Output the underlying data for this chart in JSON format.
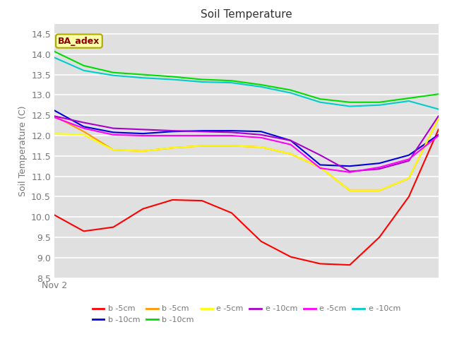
{
  "title": "Soil Temperature",
  "ylabel": "Soil Temperature (C)",
  "xlabel": "Nov 2",
  "ylim": [
    8.5,
    14.75
  ],
  "annotation_text": "BA_adex",
  "series": [
    {
      "label": "b -5cm",
      "color": "#ff0000",
      "y": [
        10.05,
        9.65,
        9.75,
        10.2,
        10.42,
        10.4,
        10.1,
        9.4,
        9.02,
        8.85,
        8.82,
        9.5,
        10.5,
        12.15
      ]
    },
    {
      "label": "b -10cm",
      "color": "#0000dd",
      "y": [
        12.62,
        12.22,
        12.08,
        12.05,
        12.1,
        12.12,
        12.12,
        12.1,
        11.88,
        11.28,
        11.25,
        11.32,
        11.52,
        12.02
      ]
    },
    {
      "label": "b -5cm",
      "color": "#ff9900",
      "y": [
        12.48,
        12.1,
        11.65,
        11.62,
        11.7,
        11.75,
        11.75,
        11.72,
        11.55,
        11.22,
        10.65,
        10.65,
        10.95,
        12.42
      ]
    },
    {
      "label": "b -10cm",
      "color": "#00dd00",
      "y": [
        14.07,
        13.72,
        13.55,
        13.5,
        13.45,
        13.38,
        13.35,
        13.25,
        13.12,
        12.9,
        12.82,
        12.82,
        12.92,
        13.02
      ]
    },
    {
      "label": "e -5cm",
      "color": "#ffff00",
      "y": [
        12.05,
        12.02,
        11.65,
        11.62,
        11.7,
        11.75,
        11.75,
        11.72,
        11.55,
        11.22,
        10.65,
        10.65,
        10.95,
        12.42
      ]
    },
    {
      "label": "e -10cm",
      "color": "#aa00cc",
      "y": [
        12.48,
        12.32,
        12.18,
        12.15,
        12.12,
        12.1,
        12.08,
        12.02,
        11.88,
        11.52,
        11.12,
        11.18,
        11.38,
        12.48
      ]
    },
    {
      "label": "e -5cm",
      "color": "#ff00ff",
      "y": [
        12.45,
        12.18,
        12.02,
        12.0,
        12.0,
        12.0,
        12.0,
        11.95,
        11.78,
        11.2,
        11.1,
        11.22,
        11.42,
        12.0
      ]
    },
    {
      "label": "e -10cm",
      "color": "#00cccc",
      "y": [
        13.92,
        13.6,
        13.48,
        13.42,
        13.38,
        13.32,
        13.3,
        13.2,
        13.05,
        12.82,
        12.72,
        12.75,
        12.85,
        12.65
      ]
    }
  ],
  "n_points": 14,
  "plot_bg_color": "#e0e0e0",
  "fig_bg_color": "#ffffff",
  "grid_color": "#ffffff",
  "tick_color": "#777777",
  "title_color": "#333333",
  "ylabel_color": "#777777",
  "annotation_facecolor": "#ffffaa",
  "annotation_edgecolor": "#aaaa00",
  "annotation_textcolor": "#8b0000",
  "legend_ncol_row1": 6,
  "legend_ncol_row2": 2
}
